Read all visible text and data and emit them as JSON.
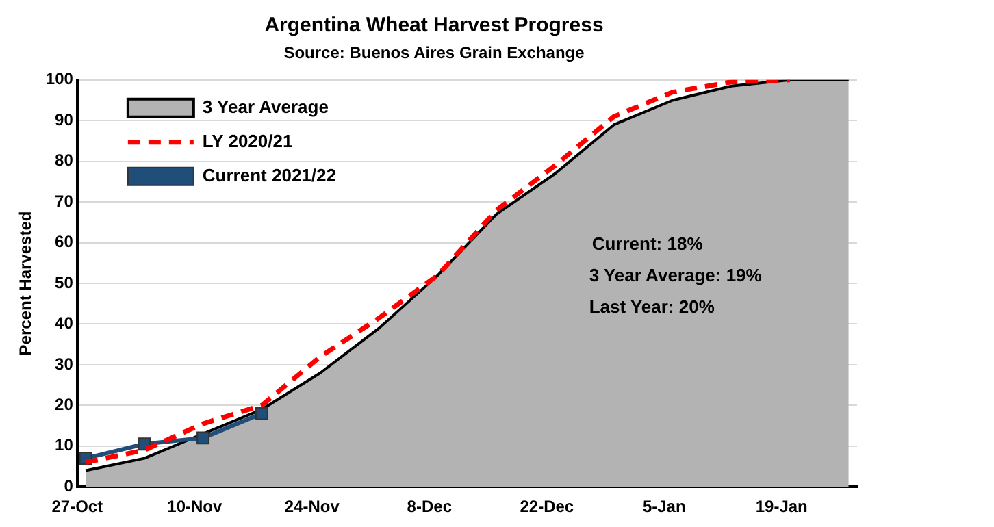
{
  "chart_data": {
    "type": "area",
    "title": "Argentina Wheat Harvest Progress",
    "subtitle": "Source: Buenos Aires Grain Exchange",
    "ylabel": "Percent Harvested",
    "x": [
      "2021-10-28",
      "2021-11-04",
      "2021-11-11",
      "2021-11-18",
      "2021-11-25",
      "2021-12-02",
      "2021-12-09",
      "2021-12-16",
      "2021-12-23",
      "2021-12-30",
      "2022-01-06",
      "2022-01-13",
      "2022-01-20",
      "2022-01-27"
    ],
    "series": [
      {
        "name": "3 Year Average",
        "color": "#b3b3b3",
        "values": [
          4,
          7,
          13,
          19,
          28,
          39,
          52,
          67,
          77,
          89,
          95,
          98.5,
          100,
          100
        ]
      },
      {
        "name": "LY 2020/21",
        "type": "line",
        "color": "#ff0000",
        "line_style": "dashed",
        "marker": "none",
        "values": [
          6,
          9,
          15.5,
          20,
          32,
          41.5,
          52,
          68,
          79,
          91,
          97,
          99.5,
          100,
          null
        ]
      },
      {
        "name": "Current 2021/22",
        "type": "line",
        "color": "#1f4e79",
        "marker": "square",
        "values": [
          7,
          10.5,
          12,
          18,
          null,
          null,
          null,
          null,
          null,
          null,
          null,
          null,
          null,
          null
        ]
      }
    ],
    "xlim": [
      "2021-10-27",
      "2022-01-28"
    ],
    "xticks": [
      {
        "value": "2021-10-27",
        "label": "27-Oct"
      },
      {
        "value": "2021-11-10",
        "label": "10-Nov"
      },
      {
        "value": "2021-11-24",
        "label": "24-Nov"
      },
      {
        "value": "2021-12-08",
        "label": "8-Dec"
      },
      {
        "value": "2021-12-22",
        "label": "22-Dec"
      },
      {
        "value": "2022-01-05",
        "label": "5-Jan"
      },
      {
        "value": "2022-01-19",
        "label": "19-Jan"
      }
    ],
    "ylim": [
      0,
      100
    ],
    "yticks": [
      0,
      10,
      20,
      30,
      40,
      50,
      60,
      70,
      80,
      90,
      100
    ],
    "grid": "y",
    "legend": "top left",
    "annotations": [
      "Current: 18%",
      "3 Year Average: 19%",
      "Last Year: 20%"
    ]
  }
}
